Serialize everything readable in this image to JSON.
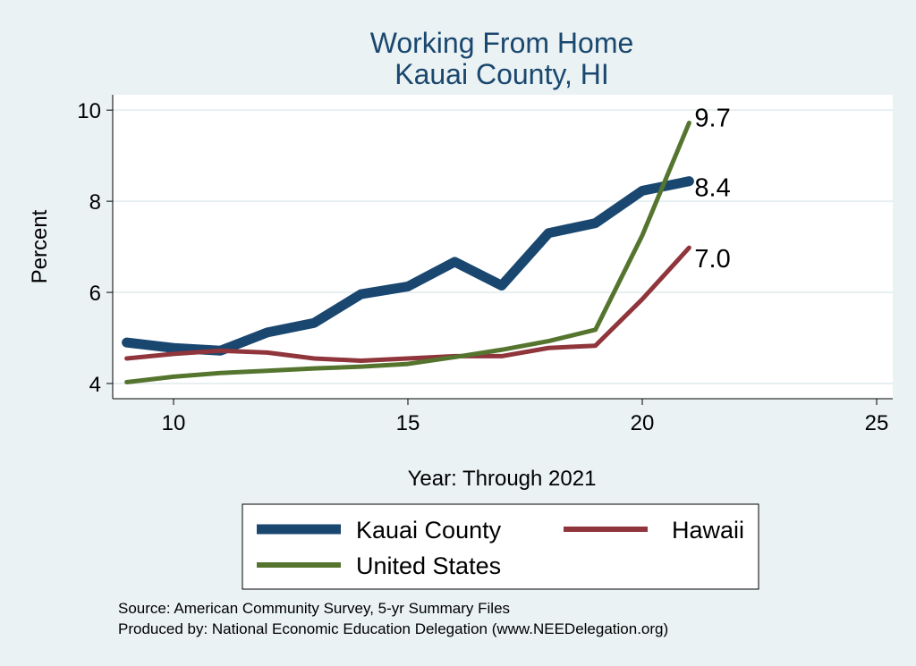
{
  "chart_data": {
    "type": "line",
    "title": "Working From Home",
    "subtitle": "Kauai County, HI",
    "xlabel": "Year: Through 2021",
    "ylabel": "Percent",
    "xlim": [
      9,
      25
    ],
    "ylim": [
      4,
      10
    ],
    "xticks": [
      10,
      15,
      20,
      25
    ],
    "yticks": [
      4,
      6,
      8,
      10
    ],
    "grid": true,
    "legend_position": "bottom",
    "x": [
      9,
      10,
      11,
      12,
      13,
      14,
      15,
      16,
      17,
      18,
      19,
      20,
      21
    ],
    "series": [
      {
        "name": "Kauai County",
        "color": "#1a476f",
        "values": [
          4.9,
          4.78,
          4.72,
          5.12,
          5.33,
          5.96,
          6.13,
          6.67,
          6.15,
          7.3,
          7.52,
          8.23,
          8.44
        ],
        "end_label": "8.4"
      },
      {
        "name": "Hawaii",
        "color": "#90353b",
        "values": [
          4.55,
          4.65,
          4.72,
          4.68,
          4.55,
          4.5,
          4.55,
          4.6,
          4.6,
          4.78,
          4.83,
          5.85,
          6.98
        ],
        "end_label": "7.0"
      },
      {
        "name": "United States",
        "color": "#55752f",
        "values": [
          4.03,
          4.15,
          4.23,
          4.28,
          4.33,
          4.37,
          4.43,
          4.58,
          4.74,
          4.93,
          5.18,
          7.25,
          9.72
        ],
        "end_label": "9.7"
      }
    ]
  },
  "notes": {
    "source": "Source: American Community Survey, 5-yr Summary Files",
    "produced": "Produced by: National Economic Education Delegation (www.NEEDelegation.org)"
  }
}
